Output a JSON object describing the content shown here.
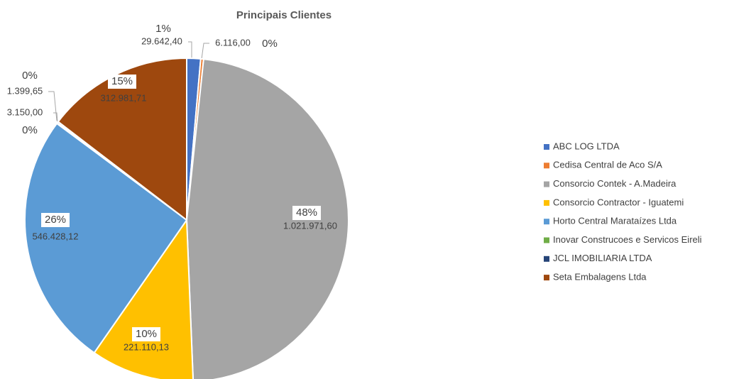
{
  "chart_data": {
    "type": "pie",
    "title": "Principais Clientes",
    "categories": [
      "ABC LOG LTDA",
      "Cedisa Central de Aco S/A",
      "Consorcio Contek - A.Madeira",
      "Consorcio Contractor - Iguatemi",
      "Horto Central Marataízes Ltda",
      "Inovar Construcoes e Servicos Eireli",
      "JCL IMOBILIARIA LTDA",
      "Seta Embalagens Ltda"
    ],
    "values": [
      29642.4,
      6116.0,
      1021971.6,
      221110.13,
      546428.12,
      1399.65,
      3150.0,
      312981.71
    ],
    "value_labels": [
      "29.642,40",
      "6.116,00",
      "1.021.971,60",
      "221.110,13",
      "546.428,12",
      "1.399,65",
      "3.150,00",
      "312.981,71"
    ],
    "percent_labels": [
      "1%",
      "0%",
      "48%",
      "10%",
      "26%",
      "0%",
      "0%",
      "15%"
    ],
    "colors": [
      "#4472c4",
      "#ed7d31",
      "#a5a5a5",
      "#ffc000",
      "#5b9bd5",
      "#70ad47",
      "#264478",
      "#9e480e"
    ],
    "legend": "right"
  }
}
